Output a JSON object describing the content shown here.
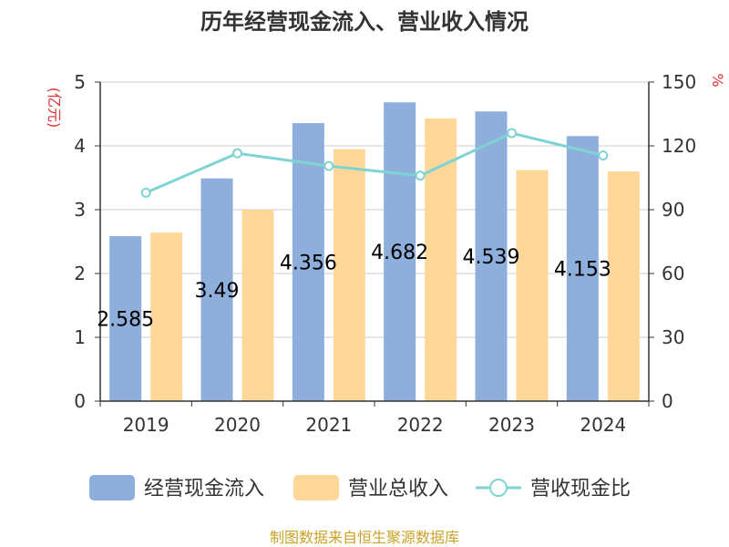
{
  "chart_data": {
    "type": "bar",
    "title": "历年经营现金流入、营业收入情况",
    "categories": [
      "2019",
      "2020",
      "2021",
      "2022",
      "2023",
      "2024"
    ],
    "left_axis": {
      "unit": "(亿元)",
      "min": 0,
      "max": 5,
      "ticks": [
        "0",
        "1",
        "2",
        "3",
        "4",
        "5"
      ]
    },
    "right_axis": {
      "unit": "%",
      "min": 0,
      "max": 150,
      "ticks": [
        "0",
        "30",
        "60",
        "90",
        "120",
        "150"
      ]
    },
    "series": [
      {
        "name": "经营现金流入",
        "type": "bar",
        "axis": "left",
        "color": "#8eaedb",
        "values": [
          2.585,
          3.49,
          4.356,
          4.682,
          4.539,
          4.153
        ],
        "labels": [
          "2.585",
          "3.49",
          "4.356",
          "4.682",
          "4.539",
          "4.153"
        ]
      },
      {
        "name": "营业总收入",
        "type": "bar",
        "axis": "left",
        "color": "#ffd899",
        "values": [
          2.64,
          3.0,
          3.95,
          4.43,
          3.62,
          3.6
        ]
      },
      {
        "name": "营收现金比",
        "type": "line",
        "axis": "right",
        "color": "#7fd3d3",
        "values": [
          98,
          116.5,
          110.5,
          106,
          126,
          115.5
        ]
      }
    ],
    "grid": true,
    "legend_position": "bottom",
    "source": "制图数据来自恒生聚源数据库",
    "colors": {
      "unit_color": "#e03030",
      "source_color": "#c9a227",
      "axis_color": "#333333",
      "grid_color": "#cccccc"
    }
  }
}
